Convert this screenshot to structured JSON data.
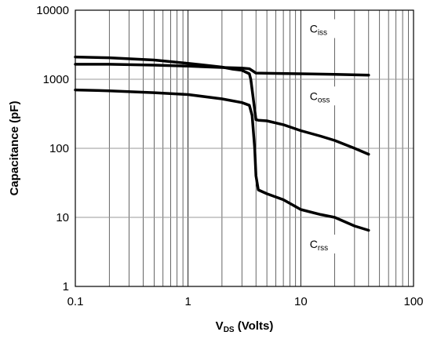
{
  "chart_data": {
    "type": "line",
    "title": "",
    "xlabel": {
      "main": "V",
      "sub": "DS",
      "rest": " (Volts)"
    },
    "ylabel": "Capacitance (pF)",
    "xscale": "log",
    "yscale": "log",
    "xlim": [
      0.1,
      100
    ],
    "ylim": [
      1,
      10000
    ],
    "grid": true,
    "xticks": [
      {
        "value": 0.1,
        "label": "0.1"
      },
      {
        "value": 1,
        "label": "1"
      },
      {
        "value": 10,
        "label": "10"
      },
      {
        "value": 100,
        "label": "100"
      }
    ],
    "yticks": [
      {
        "value": 1,
        "label": "1"
      },
      {
        "value": 10,
        "label": "10"
      },
      {
        "value": 100,
        "label": "100"
      },
      {
        "value": 1000,
        "label": "1000"
      },
      {
        "value": 10000,
        "label": "10000"
      }
    ],
    "series": [
      {
        "label": {
          "main": "C",
          "sub": "iss",
          "at": [
            12,
            5000
          ]
        },
        "x": [
          0.1,
          0.2,
          0.5,
          1,
          2,
          3,
          3.5,
          3.8,
          4,
          5,
          10,
          20,
          40
        ],
        "y": [
          1650,
          1650,
          1600,
          1550,
          1480,
          1450,
          1420,
          1300,
          1230,
          1220,
          1200,
          1180,
          1150
        ]
      },
      {
        "label": {
          "main": "C",
          "sub": "oss",
          "at": [
            12,
            530
          ]
        },
        "x": [
          0.1,
          0.2,
          0.5,
          1,
          2,
          2.5,
          3,
          3.5,
          3.6,
          3.8,
          4,
          4.2,
          5,
          7,
          10,
          15,
          20,
          30,
          40
        ],
        "y": [
          2100,
          2050,
          1900,
          1700,
          1500,
          1400,
          1350,
          1200,
          1000,
          500,
          260,
          255,
          250,
          220,
          180,
          150,
          130,
          100,
          82
        ]
      },
      {
        "label": {
          "main": "C",
          "sub": "rss",
          "at": [
            12,
            3.8
          ]
        },
        "x": [
          0.1,
          0.2,
          0.5,
          1,
          2,
          3,
          3.5,
          3.7,
          3.9,
          4,
          4.2,
          5,
          7,
          10,
          15,
          20,
          30,
          40
        ],
        "y": [
          700,
          680,
          640,
          600,
          520,
          460,
          420,
          300,
          100,
          40,
          25,
          22,
          18,
          13,
          11,
          10,
          7.5,
          6.5
        ]
      }
    ]
  }
}
